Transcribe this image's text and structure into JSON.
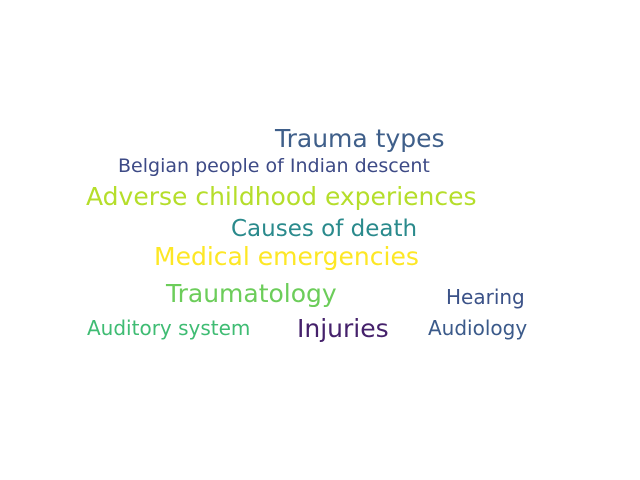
{
  "words": [
    {
      "text": "Trauma types",
      "color": "#3f5f8a"
    },
    {
      "text": "Belgian people of Indian descent",
      "color": "#3d4a86"
    },
    {
      "text": "Adverse childhood experiences",
      "color": "#b5de2b"
    },
    {
      "text": "Causes of death",
      "color": "#2a8a8c"
    },
    {
      "text": "Medical emergencies",
      "color": "#fde725"
    },
    {
      "text": "Traumatology",
      "color": "#6ccd5a"
    },
    {
      "text": "Hearing",
      "color": "#3b5288"
    },
    {
      "text": "Auditory system",
      "color": "#3fbc73"
    },
    {
      "text": "Injuries",
      "color": "#45216b"
    },
    {
      "text": "Audiology",
      "color": "#3b5a8a"
    }
  ]
}
